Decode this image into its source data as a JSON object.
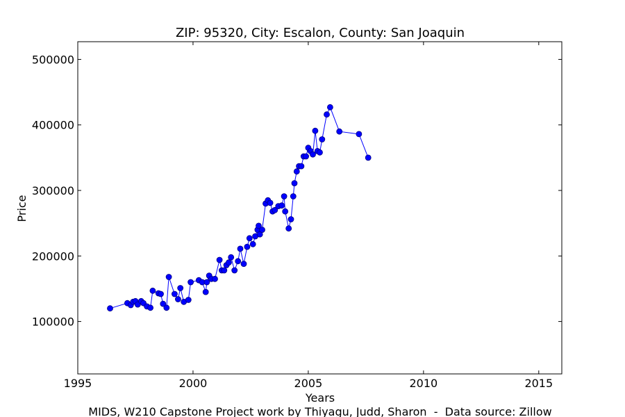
{
  "chart_data": {
    "type": "line",
    "title": "ZIP: 95320, City: Escalon, County: San Joaquin",
    "xlabel": "Years",
    "ylabel": "Price",
    "footer": "MIDS, W210 Capstone Project work by Thiyagu, Judd, Sharon  -  Data source: Zillow",
    "xlim": [
      1995,
      2016
    ],
    "ylim": [
      20000,
      527000
    ],
    "xticks": [
      1995,
      2000,
      2005,
      2010,
      2015
    ],
    "yticks": [
      100000,
      200000,
      300000,
      400000,
      500000
    ],
    "grid": false,
    "colors": {
      "line": "#0000ff",
      "marker": "#0000ff",
      "marker_edge": "#000080"
    },
    "series": [
      {
        "x": [
          1996.4,
          1997.15,
          1997.3,
          1997.4,
          1997.5,
          1997.6,
          1997.75,
          1997.85,
          1998.0,
          1998.15,
          1998.25,
          1998.5,
          1998.6,
          1998.7,
          1998.85,
          1998.95,
          1999.2,
          1999.35,
          1999.45,
          1999.6,
          1999.8,
          1999.9,
          2000.25,
          2000.4,
          2000.55,
          2000.6,
          2000.7,
          2000.8,
          2000.95,
          2001.15,
          2001.25,
          2001.35,
          2001.45,
          2001.55,
          2001.65,
          2001.8,
          2001.95,
          2002.05,
          2002.2,
          2002.35,
          2002.45,
          2002.6,
          2002.7,
          2002.8,
          2002.85,
          2002.9,
          2003.0,
          2003.15,
          2003.25,
          2003.35,
          2003.45,
          2003.55,
          2003.7,
          2003.85,
          2003.95,
          2004.0,
          2004.15,
          2004.25,
          2004.35,
          2004.4,
          2004.5,
          2004.6,
          2004.7,
          2004.8,
          2004.9,
          2005.0,
          2005.1,
          2005.2,
          2005.3,
          2005.4,
          2005.5,
          2005.6,
          2005.8,
          2005.95,
          2006.35,
          2007.2,
          2007.6
        ],
        "y": [
          120000,
          128000,
          125000,
          130000,
          131000,
          126000,
          131000,
          128000,
          123000,
          121000,
          147000,
          143000,
          142000,
          127000,
          121000,
          168000,
          142000,
          134000,
          151000,
          130000,
          133000,
          160000,
          163000,
          160000,
          145000,
          160000,
          170000,
          165000,
          165000,
          194000,
          178000,
          178000,
          186000,
          190000,
          198000,
          178000,
          192000,
          211000,
          188000,
          214000,
          227000,
          218000,
          230000,
          240000,
          246000,
          233000,
          240000,
          280000,
          285000,
          281000,
          268000,
          270000,
          276000,
          277000,
          291000,
          268000,
          242000,
          256000,
          291000,
          311000,
          329000,
          337000,
          337000,
          352000,
          352000,
          365000,
          360000,
          355000,
          391000,
          360000,
          358000,
          378000,
          416000,
          427000,
          390000,
          386000,
          350000
        ]
      }
    ]
  }
}
